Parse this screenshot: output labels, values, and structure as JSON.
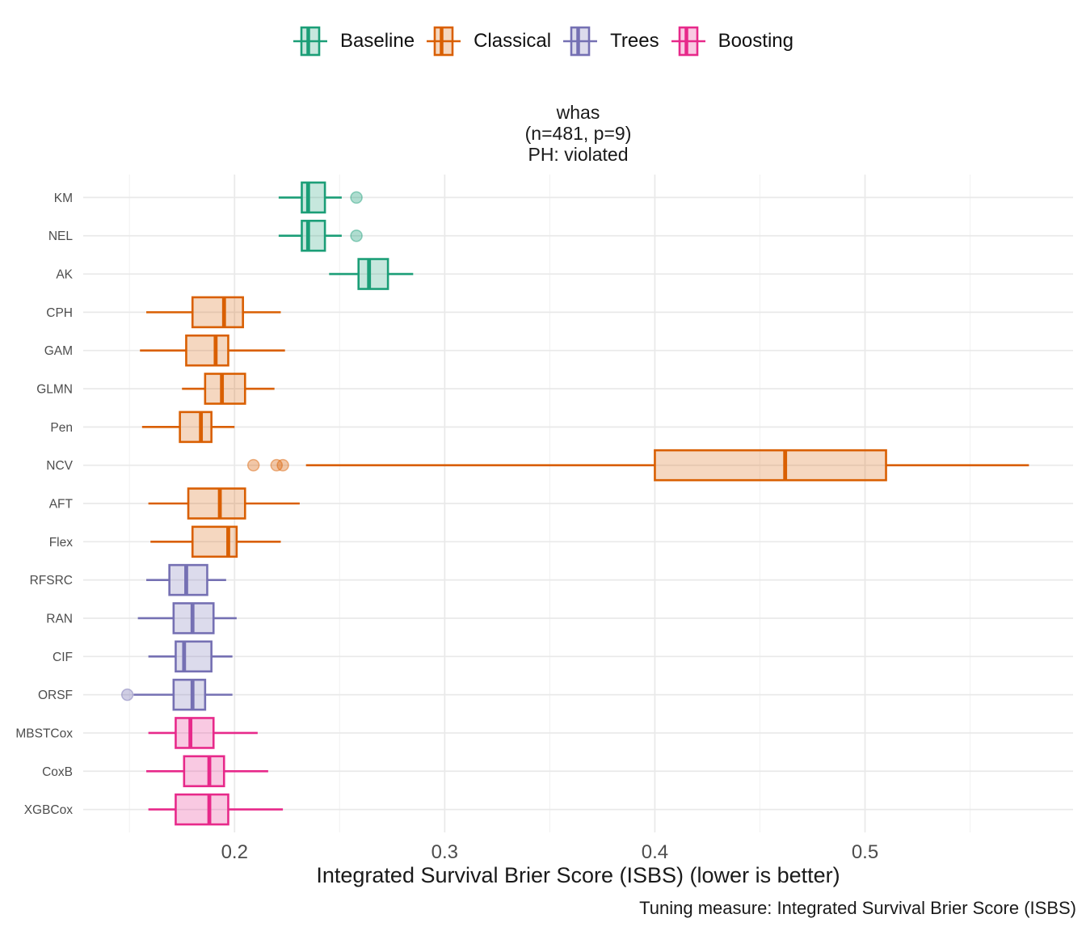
{
  "legend": {
    "items": [
      {
        "label": "Baseline",
        "color": "#1B9E77"
      },
      {
        "label": "Classical",
        "color": "#D95F02"
      },
      {
        "label": "Trees",
        "color": "#7570B3"
      },
      {
        "label": "Boosting",
        "color": "#E7298A"
      }
    ]
  },
  "title": {
    "lines": [
      "whas",
      "(n=481, p=9)",
      "PH: violated"
    ]
  },
  "chart_data": {
    "type": "boxplot",
    "orientation": "horizontal",
    "title": "whas (n=481, p=9) PH: violated",
    "xlabel": "Integrated Survival Brier Score (ISBS) (lower is better)",
    "caption": "Tuning measure: Integrated Survival Brier Score (ISBS)",
    "xlim": [
      0.128,
      0.599
    ],
    "x_major_ticks": [
      0.2,
      0.3,
      0.4,
      0.5
    ],
    "x_tick_labels": [
      "0.2",
      "0.3",
      "0.4",
      "0.5"
    ],
    "x_minor_ticks": [
      0.15,
      0.25,
      0.35,
      0.45,
      0.55
    ],
    "grid": true,
    "legend_position": "top",
    "group_colors": {
      "Baseline": "#1B9E77",
      "Classical": "#D95F02",
      "Trees": "#7570B3",
      "Boosting": "#E7298A"
    },
    "rows": [
      {
        "label": "KM",
        "group": "Baseline",
        "whisker_low": 0.221,
        "q1": 0.232,
        "median": 0.235,
        "q3": 0.243,
        "whisker_high": 0.251,
        "outliers": [
          0.258
        ]
      },
      {
        "label": "NEL",
        "group": "Baseline",
        "whisker_low": 0.221,
        "q1": 0.232,
        "median": 0.235,
        "q3": 0.243,
        "whisker_high": 0.251,
        "outliers": [
          0.258
        ]
      },
      {
        "label": "AK",
        "group": "Baseline",
        "whisker_low": 0.245,
        "q1": 0.259,
        "median": 0.264,
        "q3": 0.273,
        "whisker_high": 0.285,
        "outliers": []
      },
      {
        "label": "CPH",
        "group": "Classical",
        "whisker_low": 0.158,
        "q1": 0.18,
        "median": 0.195,
        "q3": 0.204,
        "whisker_high": 0.222,
        "outliers": []
      },
      {
        "label": "GAM",
        "group": "Classical",
        "whisker_low": 0.155,
        "q1": 0.177,
        "median": 0.191,
        "q3": 0.197,
        "whisker_high": 0.224,
        "outliers": []
      },
      {
        "label": "GLMN",
        "group": "Classical",
        "whisker_low": 0.175,
        "q1": 0.186,
        "median": 0.194,
        "q3": 0.205,
        "whisker_high": 0.219,
        "outliers": []
      },
      {
        "label": "Pen",
        "group": "Classical",
        "whisker_low": 0.156,
        "q1": 0.174,
        "median": 0.184,
        "q3": 0.189,
        "whisker_high": 0.2,
        "outliers": []
      },
      {
        "label": "NCV",
        "group": "Classical",
        "whisker_low": 0.234,
        "q1": 0.4,
        "median": 0.462,
        "q3": 0.51,
        "whisker_high": 0.578,
        "outliers": [
          0.209,
          0.22,
          0.223
        ]
      },
      {
        "label": "AFT",
        "group": "Classical",
        "whisker_low": 0.159,
        "q1": 0.178,
        "median": 0.193,
        "q3": 0.205,
        "whisker_high": 0.231,
        "outliers": []
      },
      {
        "label": "Flex",
        "group": "Classical",
        "whisker_low": 0.16,
        "q1": 0.18,
        "median": 0.197,
        "q3": 0.201,
        "whisker_high": 0.222,
        "outliers": []
      },
      {
        "label": "RFSRC",
        "group": "Trees",
        "whisker_low": 0.158,
        "q1": 0.169,
        "median": 0.177,
        "q3": 0.187,
        "whisker_high": 0.196,
        "outliers": []
      },
      {
        "label": "RAN",
        "group": "Trees",
        "whisker_low": 0.154,
        "q1": 0.171,
        "median": 0.18,
        "q3": 0.19,
        "whisker_high": 0.201,
        "outliers": []
      },
      {
        "label": "CIF",
        "group": "Trees",
        "whisker_low": 0.159,
        "q1": 0.172,
        "median": 0.176,
        "q3": 0.189,
        "whisker_high": 0.199,
        "outliers": []
      },
      {
        "label": "ORSF",
        "group": "Trees",
        "whisker_low": 0.152,
        "q1": 0.171,
        "median": 0.18,
        "q3": 0.186,
        "whisker_high": 0.199,
        "outliers": [
          0.149
        ]
      },
      {
        "label": "MBSTCox",
        "group": "Boosting",
        "whisker_low": 0.159,
        "q1": 0.172,
        "median": 0.179,
        "q3": 0.19,
        "whisker_high": 0.211,
        "outliers": []
      },
      {
        "label": "CoxB",
        "group": "Boosting",
        "whisker_low": 0.158,
        "q1": 0.176,
        "median": 0.188,
        "q3": 0.195,
        "whisker_high": 0.216,
        "outliers": []
      },
      {
        "label": "XGBCox",
        "group": "Boosting",
        "whisker_low": 0.159,
        "q1": 0.172,
        "median": 0.188,
        "q3": 0.197,
        "whisker_high": 0.223,
        "outliers": []
      }
    ]
  },
  "style": {
    "grid_major_color": "#e9e9e9",
    "grid_minor_color": "#f2f2f2",
    "axis_text_color": "#4d4d4d",
    "text_color": "#1a1a1a"
  }
}
